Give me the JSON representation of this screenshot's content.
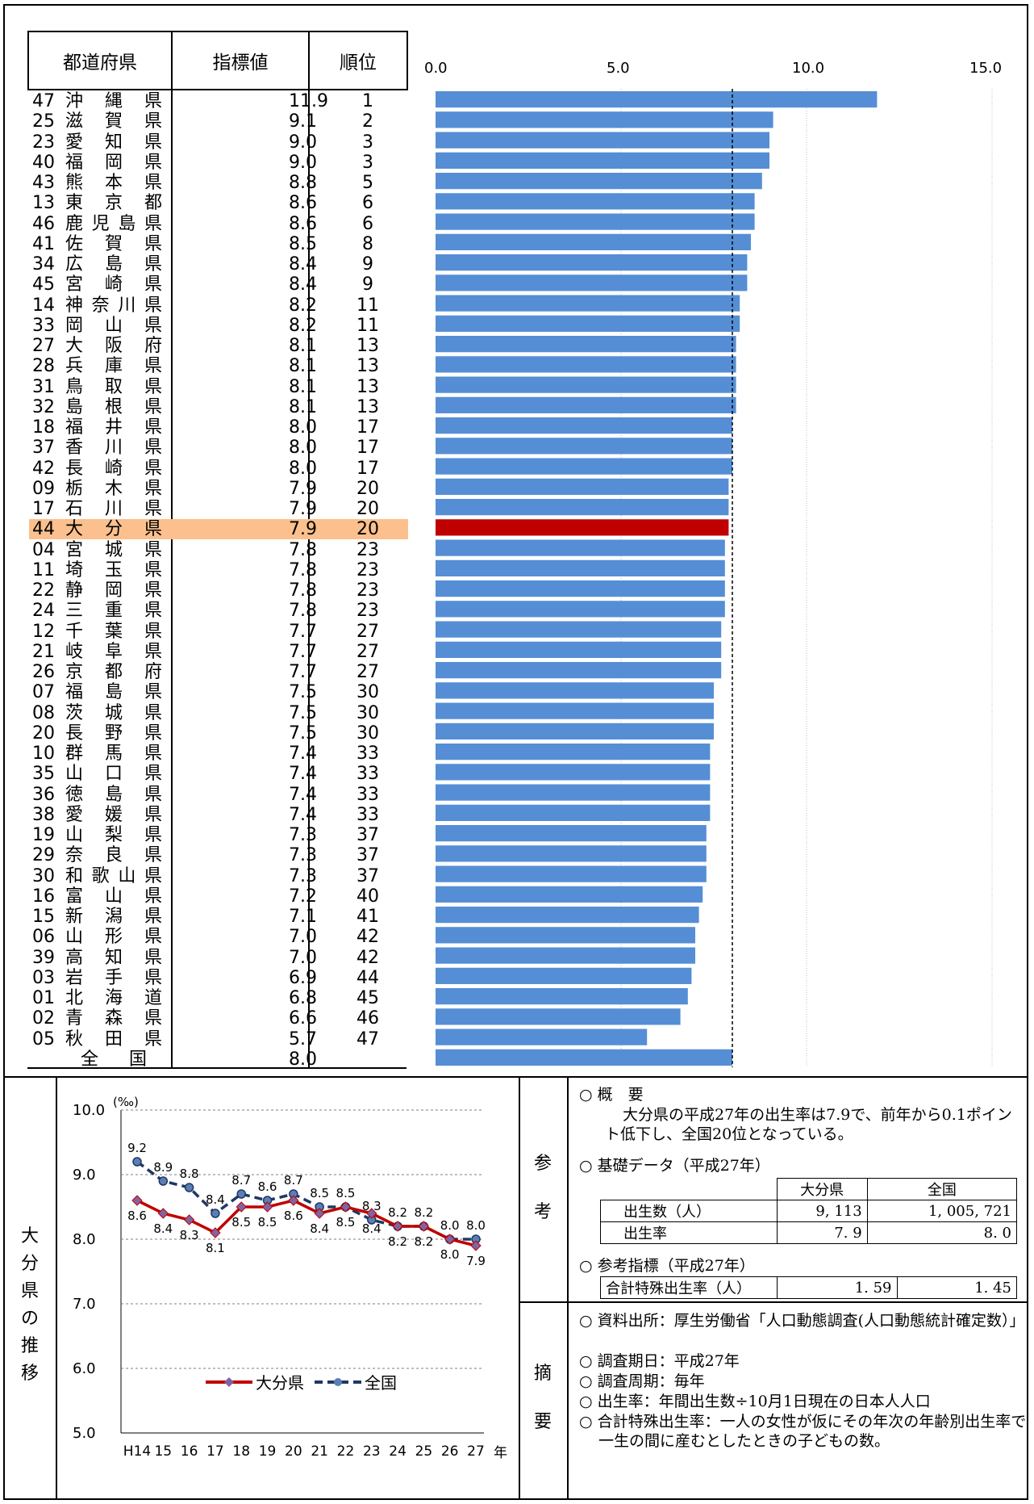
{
  "table": {
    "headers": [
      "都道府県",
      "指標値",
      "順位"
    ],
    "rows": [
      {
        "code": "47",
        "name": "沖縄県",
        "value": "11.9",
        "rank": "1"
      },
      {
        "code": "25",
        "name": "滋賀県",
        "value": "9.1",
        "rank": "2"
      },
      {
        "code": "23",
        "name": "愛知県",
        "value": "9.0",
        "rank": "3"
      },
      {
        "code": "40",
        "name": "福岡県",
        "value": "9.0",
        "rank": "3"
      },
      {
        "code": "43",
        "name": "熊本県",
        "value": "8.8",
        "rank": "5"
      },
      {
        "code": "13",
        "name": "東京都",
        "value": "8.6",
        "rank": "6"
      },
      {
        "code": "46",
        "name": "鹿児島県",
        "value": "8.6",
        "rank": "6"
      },
      {
        "code": "41",
        "name": "佐賀県",
        "value": "8.5",
        "rank": "8"
      },
      {
        "code": "34",
        "name": "広島県",
        "value": "8.4",
        "rank": "9"
      },
      {
        "code": "45",
        "name": "宮崎県",
        "value": "8.4",
        "rank": "9"
      },
      {
        "code": "14",
        "name": "神奈川県",
        "value": "8.2",
        "rank": "11"
      },
      {
        "code": "33",
        "name": "岡山県",
        "value": "8.2",
        "rank": "11"
      },
      {
        "code": "27",
        "name": "大阪府",
        "value": "8.1",
        "rank": "13"
      },
      {
        "code": "28",
        "name": "兵庫県",
        "value": "8.1",
        "rank": "13"
      },
      {
        "code": "31",
        "name": "鳥取県",
        "value": "8.1",
        "rank": "13"
      },
      {
        "code": "32",
        "name": "島根県",
        "value": "8.1",
        "rank": "13"
      },
      {
        "code": "18",
        "name": "福井県",
        "value": "8.0",
        "rank": "17"
      },
      {
        "code": "37",
        "name": "香川県",
        "value": "8.0",
        "rank": "17"
      },
      {
        "code": "42",
        "name": "長崎県",
        "value": "8.0",
        "rank": "17"
      },
      {
        "code": "09",
        "name": "栃木県",
        "value": "7.9",
        "rank": "20"
      },
      {
        "code": "17",
        "name": "石川県",
        "value": "7.9",
        "rank": "20"
      },
      {
        "code": "44",
        "name": "大分県",
        "value": "7.9",
        "rank": "20",
        "highlight": true
      },
      {
        "code": "04",
        "name": "宮城県",
        "value": "7.8",
        "rank": "23"
      },
      {
        "code": "11",
        "name": "埼玉県",
        "value": "7.8",
        "rank": "23"
      },
      {
        "code": "22",
        "name": "静岡県",
        "value": "7.8",
        "rank": "23"
      },
      {
        "code": "24",
        "name": "三重県",
        "value": "7.8",
        "rank": "23"
      },
      {
        "code": "12",
        "name": "千葉県",
        "value": "7.7",
        "rank": "27"
      },
      {
        "code": "21",
        "name": "岐阜県",
        "value": "7.7",
        "rank": "27"
      },
      {
        "code": "26",
        "name": "京都府",
        "value": "7.7",
        "rank": "27"
      },
      {
        "code": "07",
        "name": "福島県",
        "value": "7.5",
        "rank": "30"
      },
      {
        "code": "08",
        "name": "茨城県",
        "value": "7.5",
        "rank": "30"
      },
      {
        "code": "20",
        "name": "長野県",
        "value": "7.5",
        "rank": "30"
      },
      {
        "code": "10",
        "name": "群馬県",
        "value": "7.4",
        "rank": "33"
      },
      {
        "code": "35",
        "name": "山口県",
        "value": "7.4",
        "rank": "33"
      },
      {
        "code": "36",
        "name": "徳島県",
        "value": "7.4",
        "rank": "33"
      },
      {
        "code": "38",
        "name": "愛媛県",
        "value": "7.4",
        "rank": "33"
      },
      {
        "code": "19",
        "name": "山梨県",
        "value": "7.3",
        "rank": "37"
      },
      {
        "code": "29",
        "name": "奈良県",
        "value": "7.3",
        "rank": "37"
      },
      {
        "code": "30",
        "name": "和歌山県",
        "value": "7.3",
        "rank": "37"
      },
      {
        "code": "16",
        "name": "富山県",
        "value": "7.2",
        "rank": "40"
      },
      {
        "code": "15",
        "name": "新潟県",
        "value": "7.1",
        "rank": "41"
      },
      {
        "code": "06",
        "name": "山形県",
        "value": "7.0",
        "rank": "42"
      },
      {
        "code": "39",
        "name": "高知県",
        "value": "7.0",
        "rank": "42"
      },
      {
        "code": "03",
        "name": "岩手県",
        "value": "6.9",
        "rank": "44"
      },
      {
        "code": "01",
        "name": "北海道",
        "value": "6.8",
        "rank": "45"
      },
      {
        "code": "02",
        "name": "青森県",
        "value": "6.6",
        "rank": "46"
      },
      {
        "code": "05",
        "name": "秋田県",
        "value": "5.7",
        "rank": "47"
      },
      {
        "code": "",
        "name": "全国",
        "value": "8.0",
        "rank": ""
      }
    ]
  },
  "chart_data": [
    {
      "type": "bar",
      "orientation": "horizontal",
      "categories": [
        "沖縄県",
        "滋賀県",
        "愛知県",
        "福岡県",
        "熊本県",
        "東京都",
        "鹿児島県",
        "佐賀県",
        "広島県",
        "宮崎県",
        "神奈川県",
        "岡山県",
        "大阪府",
        "兵庫県",
        "鳥取県",
        "島根県",
        "福井県",
        "香川県",
        "長崎県",
        "栃木県",
        "石川県",
        "大分県",
        "宮城県",
        "埼玉県",
        "静岡県",
        "三重県",
        "千葉県",
        "岐阜県",
        "京都府",
        "福島県",
        "茨城県",
        "長野県",
        "群馬県",
        "山口県",
        "徳島県",
        "愛媛県",
        "山梨県",
        "奈良県",
        "和歌山県",
        "富山県",
        "新潟県",
        "山形県",
        "高知県",
        "岩手県",
        "北海道",
        "青森県",
        "秋田県",
        "全国"
      ],
      "values": [
        11.9,
        9.1,
        9.0,
        9.0,
        8.8,
        8.6,
        8.6,
        8.5,
        8.4,
        8.4,
        8.2,
        8.2,
        8.1,
        8.1,
        8.1,
        8.1,
        8.0,
        8.0,
        8.0,
        7.9,
        7.9,
        7.9,
        7.8,
        7.8,
        7.8,
        7.8,
        7.7,
        7.7,
        7.7,
        7.5,
        7.5,
        7.5,
        7.4,
        7.4,
        7.4,
        7.4,
        7.3,
        7.3,
        7.3,
        7.2,
        7.1,
        7.0,
        7.0,
        6.9,
        6.8,
        6.6,
        5.7,
        8.0
      ],
      "xlim": [
        0,
        15
      ],
      "xticks": [
        "0.0",
        "5.0",
        "10.0",
        "15.0"
      ],
      "reference_line": 8.0,
      "highlight_category": "大分県",
      "colors": {
        "bar": "#558ed5",
        "highlight": "#c00000"
      }
    },
    {
      "type": "line",
      "x": [
        "H14",
        "15",
        "16",
        "17",
        "18",
        "19",
        "20",
        "21",
        "22",
        "23",
        "24",
        "25",
        "26",
        "27"
      ],
      "x_suffix": "年",
      "unit": "(‰)",
      "ylim": [
        5.0,
        10.0
      ],
      "yticks": [
        "10.0",
        "9.0",
        "8.0",
        "7.0",
        "6.0",
        "5.0"
      ],
      "series": [
        {
          "name": "大分県",
          "values": [
            8.6,
            8.4,
            8.3,
            8.1,
            8.5,
            8.5,
            8.6,
            8.4,
            8.5,
            8.4,
            8.2,
            8.2,
            8.0,
            7.9
          ],
          "color": "#c00000"
        },
        {
          "name": "全国",
          "values": [
            9.2,
            8.9,
            8.8,
            8.4,
            8.7,
            8.6,
            8.7,
            8.5,
            8.5,
            8.3,
            8.2,
            8.2,
            8.0,
            8.0
          ],
          "color": "#1f3864"
        }
      ]
    }
  ],
  "left_label": "大分県の推移",
  "ref_label": "参考",
  "summary_label": "摘要",
  "reference": {
    "overview_title": "○ 概　要",
    "overview_text": "大分県の平成27年の出生率は7.9で、前年から0.1ポイント低下し、全国20位となっている。",
    "basic_title": "○ 基礎データ（平成27年）",
    "basic_table": {
      "headers": [
        "",
        "大分県",
        "全国"
      ],
      "rows": [
        [
          "出生数（人）",
          "9, 113",
          "1, 005, 721"
        ],
        [
          "出生率",
          "7. 9",
          "8. 0"
        ]
      ]
    },
    "ref_title": "○ 参考指標（平成27年）",
    "ref_row": [
      "合計特殊出生率（人）",
      "1. 59",
      "1. 45"
    ]
  },
  "summary": [
    "○ 資料出所：厚生労働省「人口動態調査(人口動態統計確定数）」",
    "○ 調査期日：平成27年",
    "○ 調査周期：毎年",
    "○ 出生率：年間出生数÷10月1日現在の日本人人口",
    "○ 合計特殊出生率：一人の女性が仮にその年次の年齢別出生率で一生の間に産むとしたときの子どもの数。"
  ]
}
